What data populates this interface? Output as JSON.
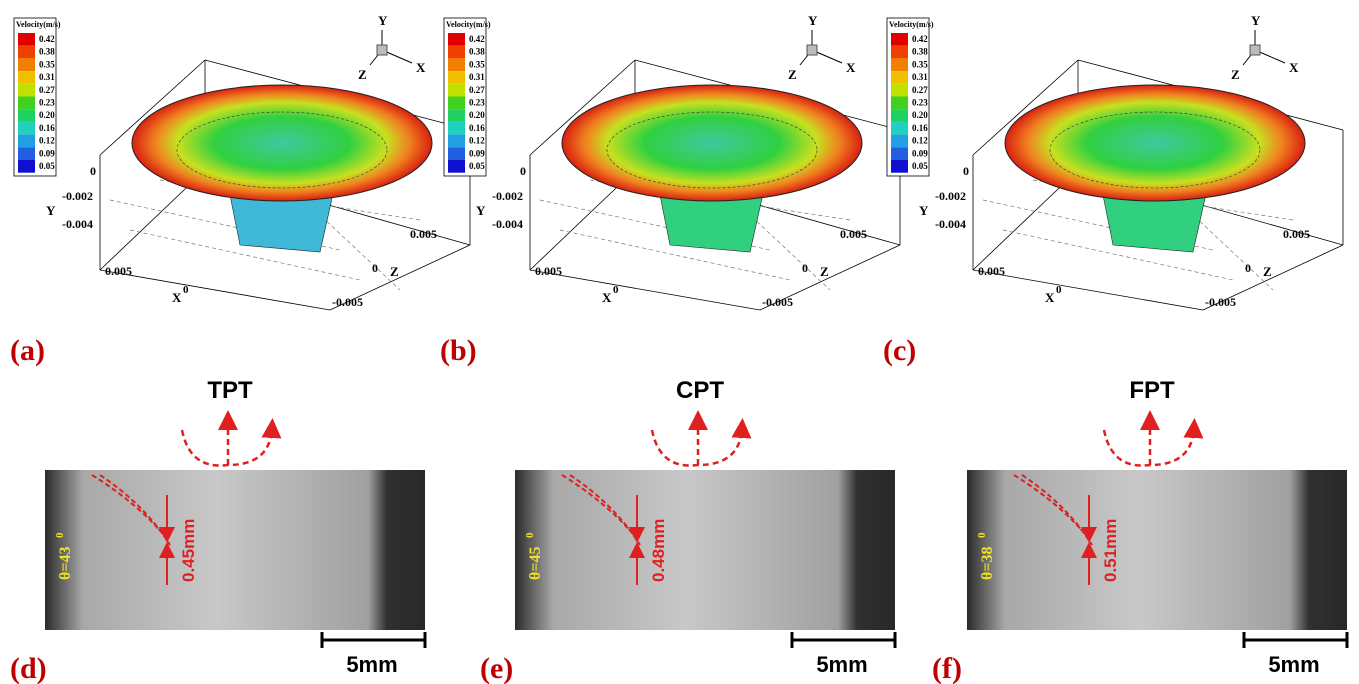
{
  "panels": [
    {
      "label": "(a)",
      "colorbar_title": "Velocity(m/s)",
      "colorbar_ticks": [
        "0.42",
        "0.38",
        "0.35",
        "0.31",
        "0.27",
        "0.23",
        "0.20",
        "0.16",
        "0.12",
        "0.09",
        "0.05"
      ],
      "triad": [
        "Y",
        "Z",
        "X"
      ],
      "y_axis": {
        "title": "Y",
        "ticks": [
          "0",
          "-0.002",
          "-0.004"
        ]
      },
      "x_axis": {
        "title": "X",
        "ticks": [
          "0.005",
          "0"
        ]
      },
      "z_axis": {
        "title": "Z",
        "ticks": [
          "0.005",
          "0",
          "-0.005"
        ]
      }
    },
    {
      "label": "(b)",
      "colorbar_title": "Velocity(m/s)",
      "colorbar_ticks": [
        "0.42",
        "0.38",
        "0.35",
        "0.31",
        "0.27",
        "0.23",
        "0.20",
        "0.16",
        "0.12",
        "0.09",
        "0.05"
      ],
      "triad": [
        "Y",
        "Z",
        "X"
      ],
      "y_axis": {
        "title": "Y",
        "ticks": [
          "0",
          "-0.002",
          "-0.004"
        ]
      },
      "x_axis": {
        "title": "X",
        "ticks": [
          "0.005",
          "0"
        ]
      },
      "z_axis": {
        "title": "Z",
        "ticks": [
          "0.005",
          "0",
          "-0.005"
        ]
      }
    },
    {
      "label": "(c)",
      "colorbar_title": "Velocity(m/s)",
      "colorbar_ticks": [
        "0.42",
        "0.38",
        "0.35",
        "0.31",
        "0.27",
        "0.23",
        "0.20",
        "0.16",
        "0.12",
        "0.09",
        "0.05"
      ],
      "triad": [
        "Y",
        "Z",
        "X"
      ],
      "y_axis": {
        "title": "Y",
        "ticks": [
          "0",
          "-0.002",
          "-0.004"
        ]
      },
      "x_axis": {
        "title": "X",
        "ticks": [
          "0.005",
          "0"
        ]
      },
      "z_axis": {
        "title": "Z",
        "ticks": [
          "0.005",
          "0",
          "-0.005"
        ]
      }
    }
  ],
  "photos": [
    {
      "label": "(d)",
      "title": "TPT",
      "angle": "θ=43",
      "angle_sup": "0",
      "thickness": "0.45mm",
      "scale": "5mm"
    },
    {
      "label": "(e)",
      "title": "CPT",
      "angle": "θ=45",
      "angle_sup": "0",
      "thickness": "0.48mm",
      "scale": "5mm"
    },
    {
      "label": "(f)",
      "title": "FPT",
      "angle": "θ=38",
      "angle_sup": "0",
      "thickness": "0.51mm",
      "scale": "5mm"
    }
  ]
}
